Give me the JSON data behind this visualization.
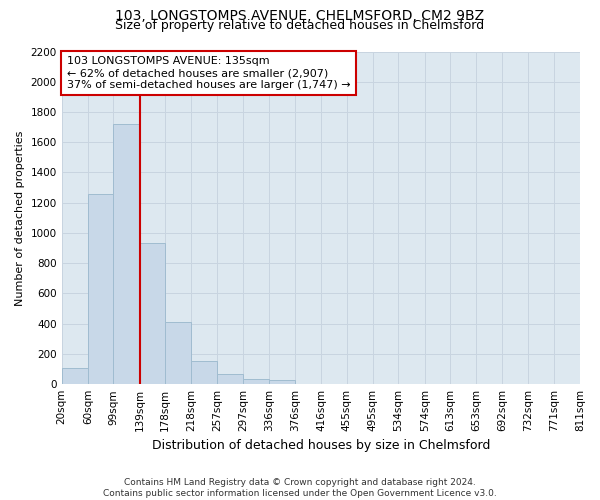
{
  "title": "103, LONGSTOMPS AVENUE, CHELMSFORD, CM2 9BZ",
  "subtitle": "Size of property relative to detached houses in Chelmsford",
  "xlabel": "Distribution of detached houses by size in Chelmsford",
  "ylabel": "Number of detached properties",
  "footer_line1": "Contains HM Land Registry data © Crown copyright and database right 2024.",
  "footer_line2": "Contains public sector information licensed under the Open Government Licence v3.0.",
  "bins": [
    20,
    60,
    99,
    139,
    178,
    218,
    257,
    297,
    336,
    376,
    416,
    455,
    495,
    534,
    574,
    613,
    653,
    692,
    732,
    771,
    811
  ],
  "bar_values": [
    110,
    1260,
    1720,
    935,
    410,
    155,
    65,
    35,
    25,
    0,
    0,
    0,
    0,
    0,
    0,
    0,
    0,
    0,
    0,
    0
  ],
  "bar_color": "#c8d8e8",
  "bar_edge_color": "#a0bcd0",
  "vline_x": 139,
  "vline_color": "#cc0000",
  "annotation_text": "103 LONGSTOMPS AVENUE: 135sqm\n← 62% of detached houses are smaller (2,907)\n37% of semi-detached houses are larger (1,747) →",
  "annotation_box_color": "#ffffff",
  "annotation_box_edge": "#cc0000",
  "ylim": [
    0,
    2200
  ],
  "yticks": [
    0,
    200,
    400,
    600,
    800,
    1000,
    1200,
    1400,
    1600,
    1800,
    2000,
    2200
  ],
  "grid_color": "#c8d4e0",
  "background_color": "#dde8f0",
  "title_fontsize": 10,
  "subtitle_fontsize": 9,
  "xlabel_fontsize": 9,
  "ylabel_fontsize": 8,
  "footer_fontsize": 6.5,
  "tick_fontsize": 7.5,
  "annotation_fontsize": 8
}
